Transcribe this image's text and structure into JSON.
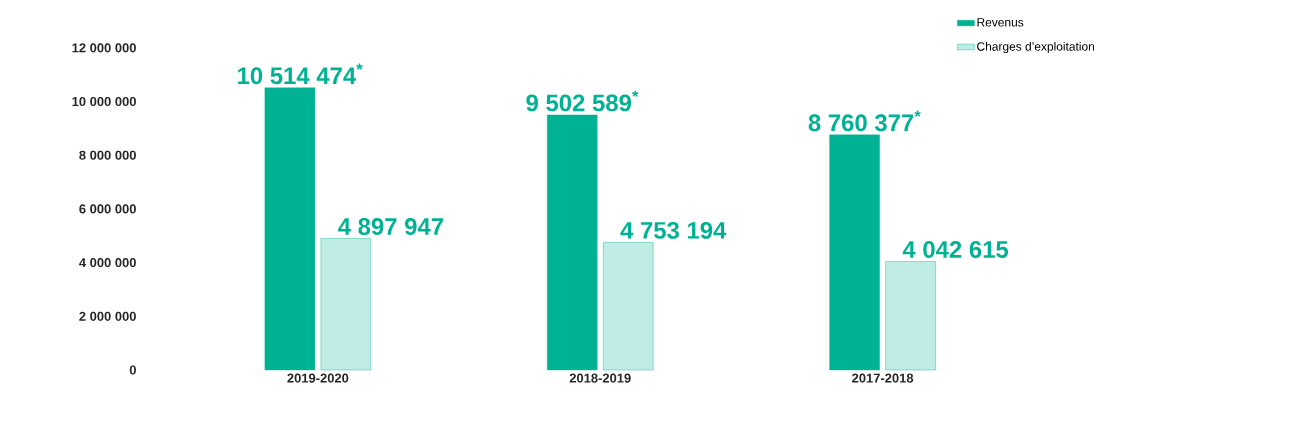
{
  "chart_data": {
    "type": "bar",
    "categories": [
      "2019-2020",
      "2018-2019",
      "2017-2018"
    ],
    "series": [
      {
        "name": "Revenus",
        "color": "#00b294",
        "values": [
          10514474,
          9502589,
          8760377
        ],
        "value_labels": [
          "10 514 474$^{*}$",
          "9 502 589$^{*}$",
          "8 760 377$^{*}$"
        ]
      },
      {
        "name": "Charges d’exploitation",
        "color": "#00b294",
        "values": [
          4897947,
          4753194,
          4042615
        ],
        "value_labels": [
          "4 897 947",
          "4 753 194",
          "4 042 615"
        ]
      }
    ],
    "ylim": [
      0,
      13000000
    ],
    "yticks": [
      {
        "value": 0,
        "label": "0"
      },
      {
        "value": 2000000,
        "label": "2 000 000"
      },
      {
        "value": 4000000,
        "label": "4 000 000"
      },
      {
        "value": 6000000,
        "label": "6 000 000"
      },
      {
        "value": 8000000,
        "label": "8 000 000"
      },
      {
        "value": 10000000,
        "label": "10 000 000"
      },
      {
        "value": 12000000,
        "label": "12 000 000"
      }
    ],
    "grid": false,
    "legend": "top right"
  }
}
